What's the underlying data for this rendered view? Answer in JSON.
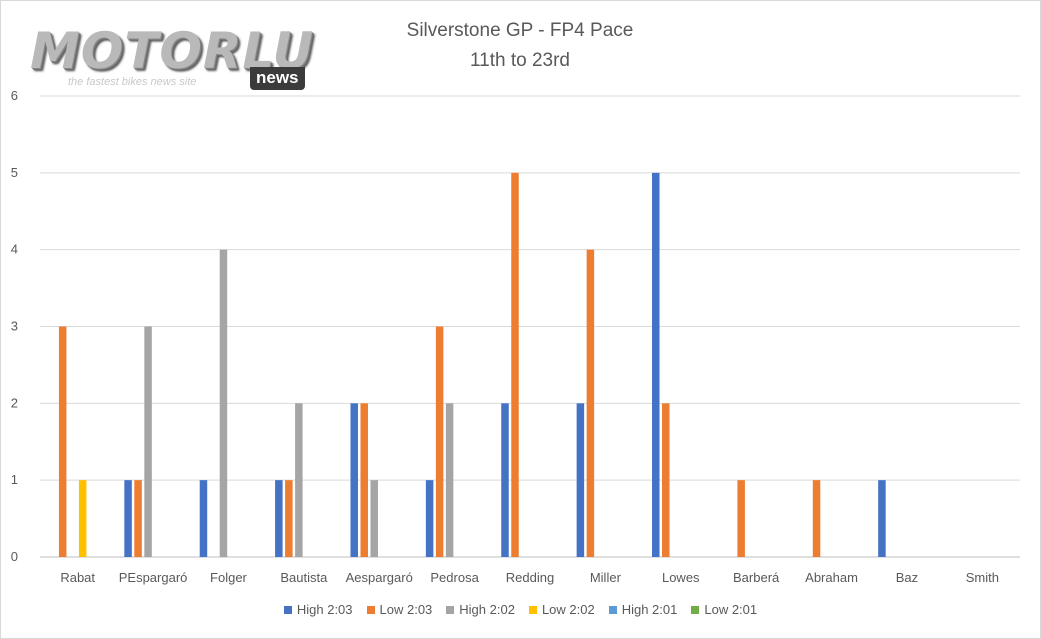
{
  "logo": {
    "wordmark": "MOTORLU",
    "tagline": "the fastest bikes news site",
    "badge": "news"
  },
  "chart_data": {
    "type": "bar",
    "title": "Silverstone GP - FP4 Pace",
    "subtitle": "11th to 23rd",
    "xlabel": "",
    "ylabel": "",
    "ylim": [
      0,
      6
    ],
    "yticks": [
      "0",
      "1",
      "2",
      "3",
      "4",
      "5",
      "6"
    ],
    "grid": true,
    "legend_position": "bottom",
    "categories": [
      "Rabat",
      "PEspargaró",
      "Folger",
      "Bautista",
      "Aespargaró",
      "Pedrosa",
      "Redding",
      "Miller",
      "Lowes",
      "Barberá",
      "Abraham",
      "Baz",
      "Smith"
    ],
    "series": [
      {
        "name": "High 2:03",
        "color": "#4472c4",
        "values": [
          0,
          1,
          1,
          1,
          2,
          1,
          2,
          2,
          5,
          0,
          0,
          1,
          0
        ]
      },
      {
        "name": "Low 2:03",
        "color": "#ed7d31",
        "values": [
          3,
          1,
          0,
          1,
          2,
          3,
          5,
          4,
          2,
          1,
          1,
          0,
          0
        ]
      },
      {
        "name": "High 2:02",
        "color": "#a5a5a5",
        "values": [
          0,
          3,
          4,
          2,
          1,
          2,
          0,
          0,
          0,
          0,
          0,
          0,
          0
        ]
      },
      {
        "name": "Low 2:02",
        "color": "#ffc000",
        "values": [
          1,
          0,
          0,
          0,
          0,
          0,
          0,
          0,
          0,
          0,
          0,
          0,
          0
        ]
      },
      {
        "name": "High 2:01",
        "color": "#5b9bd5",
        "values": [
          0,
          0,
          0,
          0,
          0,
          0,
          0,
          0,
          0,
          0,
          0,
          0,
          0
        ]
      },
      {
        "name": "Low 2:01",
        "color": "#70ad47",
        "values": [
          0,
          0,
          0,
          0,
          0,
          0,
          0,
          0,
          0,
          0,
          0,
          0,
          0
        ]
      }
    ]
  }
}
